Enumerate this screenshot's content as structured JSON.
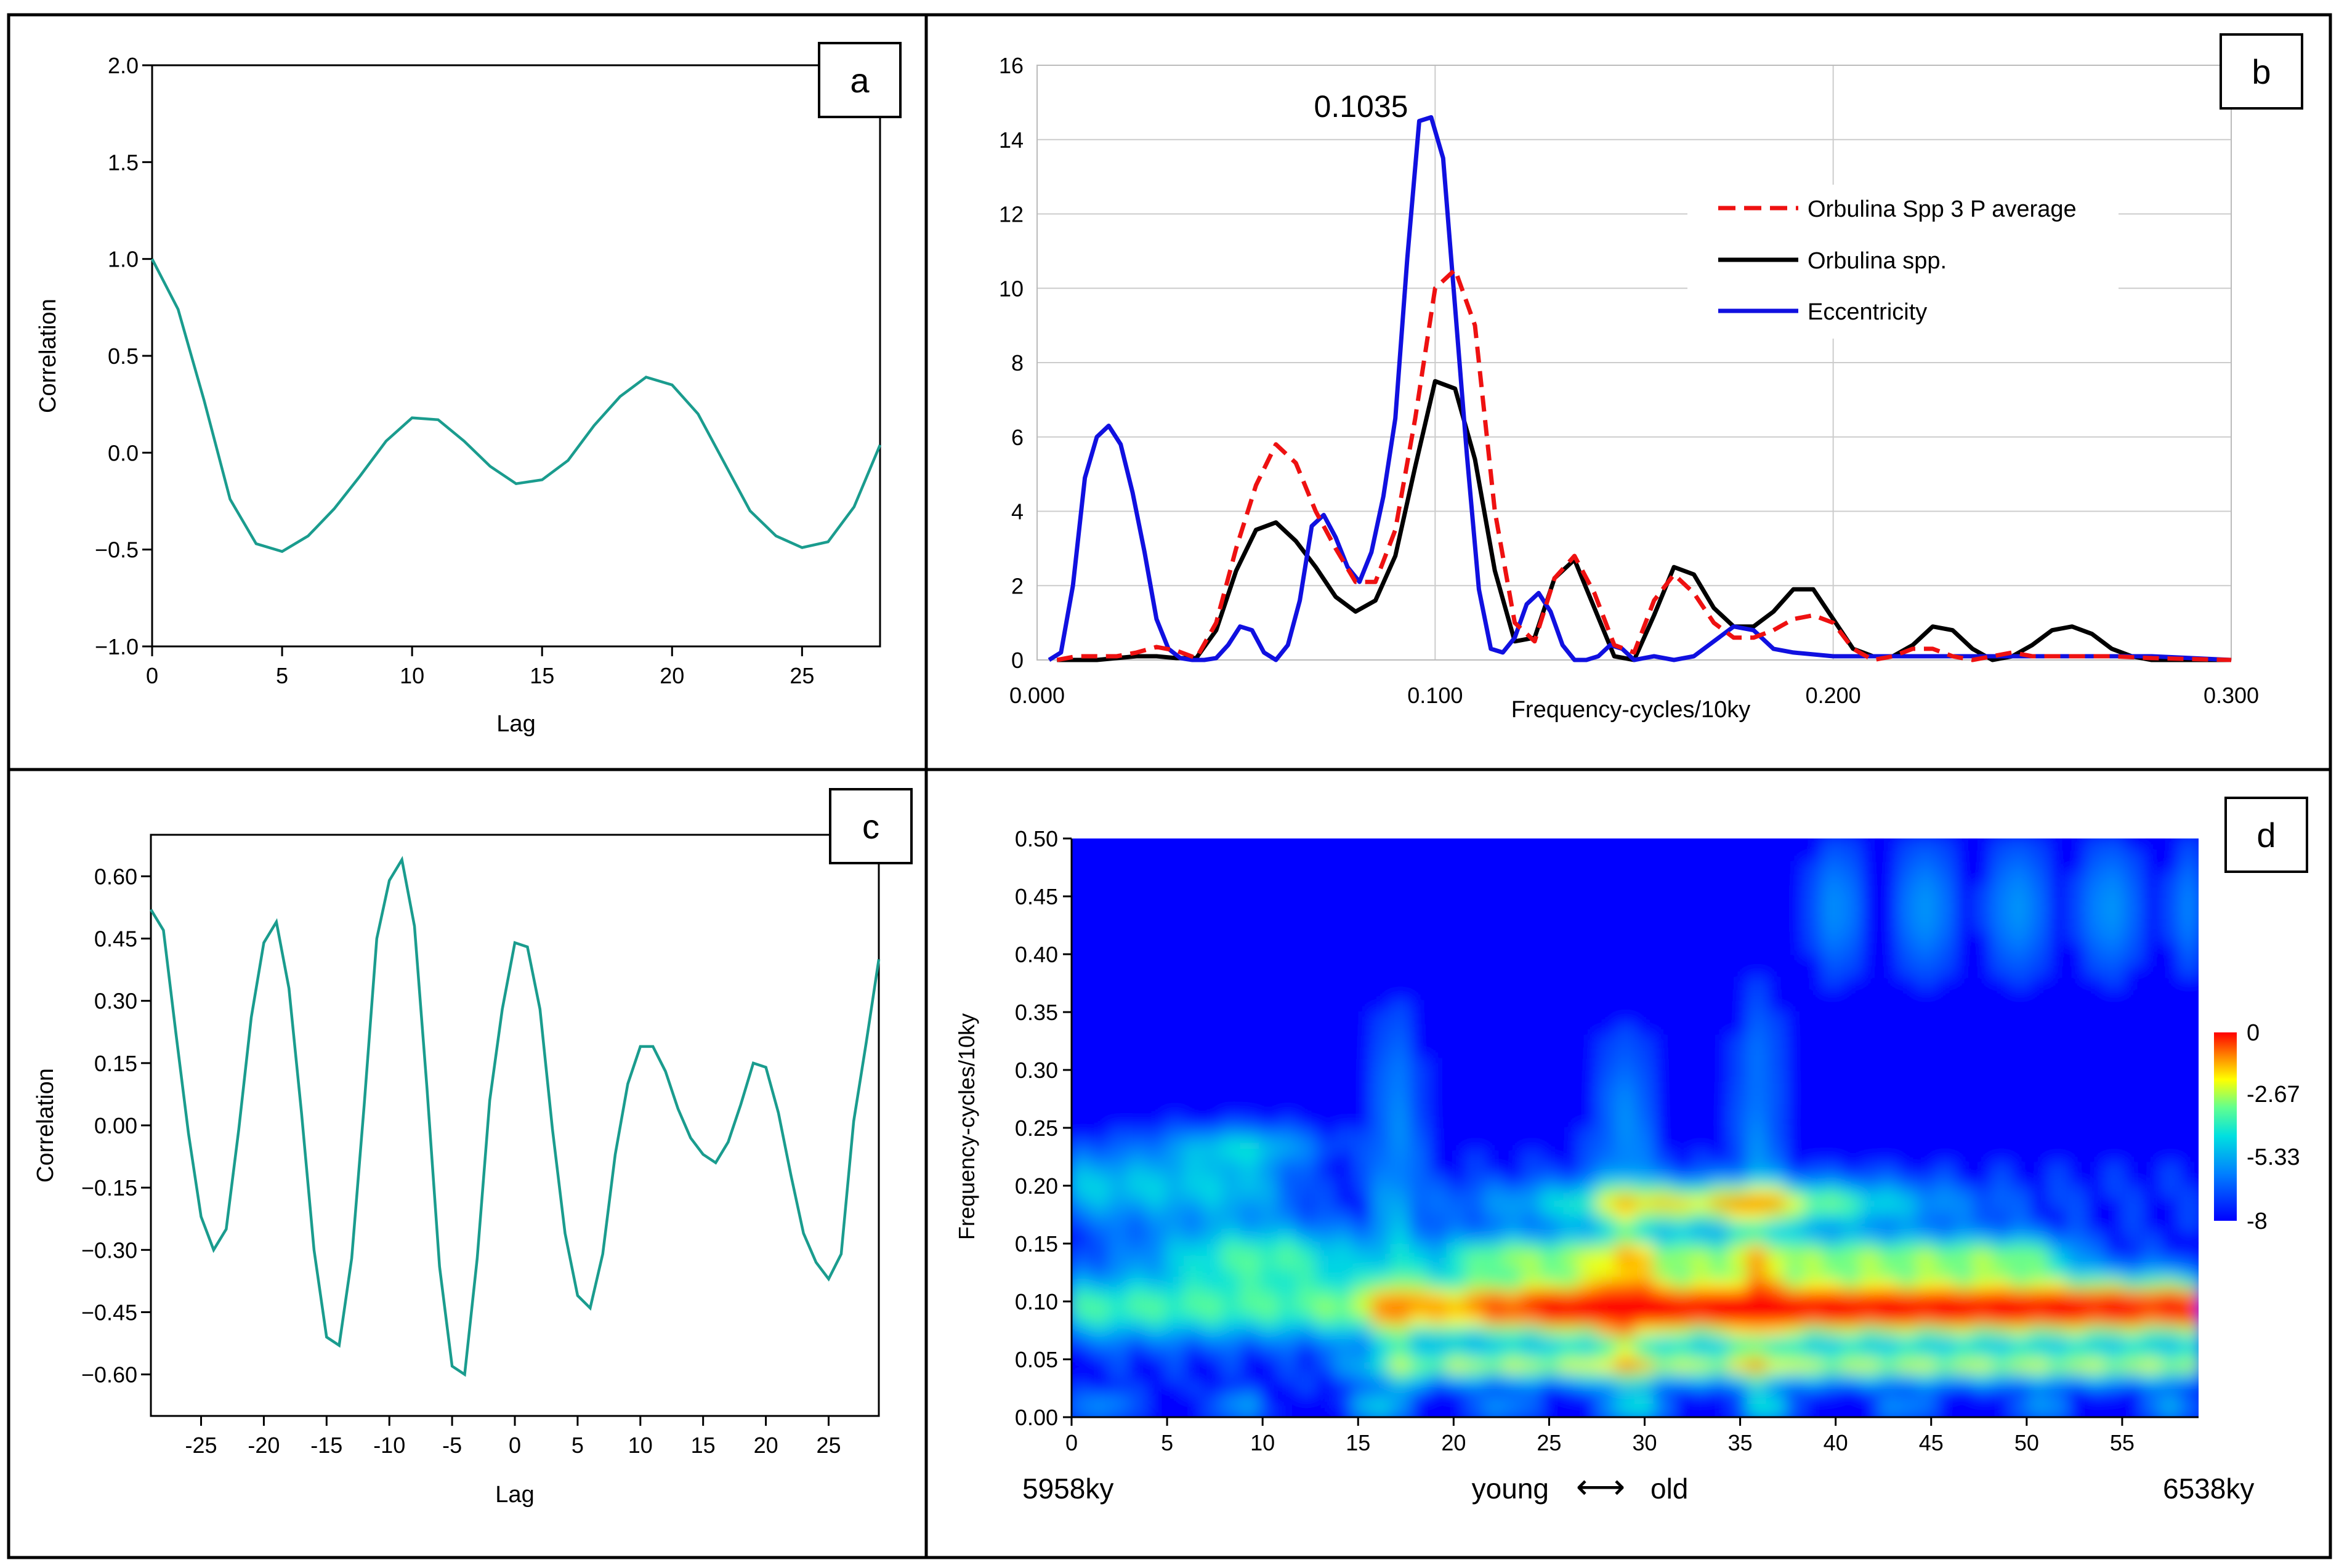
{
  "colors": {
    "teal": "#1a9c8e",
    "black": "#000000",
    "red": "#ee1111",
    "blue": "#1010e0",
    "grid": "#cccccc"
  },
  "chart_data": [
    {
      "id": "a",
      "type": "line",
      "label": "a",
      "xlabel": "Lag",
      "ylabel": "Correlation",
      "xlim": [
        0,
        28
      ],
      "ylim": [
        -1.0,
        2.0
      ],
      "xticks": [
        0,
        5,
        10,
        15,
        20,
        25
      ],
      "yticks": [
        2.0,
        1.5,
        1.0,
        0.5,
        0.0,
        -0.5,
        -1.0
      ],
      "ytick_labels": [
        "2.0",
        "1.5",
        "1.0",
        "0.5",
        "0.0",
        "−0.5",
        "−1.0"
      ],
      "x": [
        0,
        1,
        2,
        3,
        4,
        5,
        6,
        7,
        8,
        9,
        10,
        11,
        12,
        13,
        14,
        15,
        16,
        17,
        18,
        19,
        20,
        21,
        22,
        23,
        24,
        25,
        26,
        27,
        28
      ],
      "values": [
        1.0,
        0.74,
        0.27,
        -0.24,
        -0.47,
        -0.51,
        -0.43,
        -0.29,
        -0.12,
        0.06,
        0.18,
        0.17,
        0.06,
        -0.07,
        -0.16,
        -0.14,
        -0.04,
        0.14,
        0.29,
        0.39,
        0.35,
        0.2,
        -0.05,
        -0.3,
        -0.43,
        -0.49,
        -0.46,
        -0.28,
        0.04
      ]
    },
    {
      "id": "b",
      "type": "line",
      "label": "b",
      "xlabel": "Frequency-cycles/10ky",
      "ylabel": "",
      "xlim": [
        0,
        0.3
      ],
      "ylim": [
        0,
        16
      ],
      "xticks": [
        0,
        0.1,
        0.2,
        0.3
      ],
      "xtick_labels": [
        "0.000",
        "0.100",
        "0.200",
        "0.300"
      ],
      "yticks": [
        0,
        2,
        4,
        6,
        8,
        10,
        12,
        14,
        16
      ],
      "annotation": "0.1035",
      "legend": [
        "Orbulina Spp 3 P average",
        "Orbulina spp.",
        "Eccentricity"
      ],
      "series": [
        {
          "name": "Orbulina Spp 3 P average",
          "style": "dashed",
          "x": [
            0.005,
            0.01,
            0.015,
            0.02,
            0.025,
            0.03,
            0.035,
            0.04,
            0.045,
            0.05,
            0.055,
            0.06,
            0.065,
            0.07,
            0.075,
            0.08,
            0.085,
            0.09,
            0.095,
            0.1,
            0.105,
            0.11,
            0.115,
            0.12,
            0.125,
            0.13,
            0.135,
            0.14,
            0.145,
            0.15,
            0.155,
            0.16,
            0.165,
            0.17,
            0.175,
            0.18,
            0.185,
            0.19,
            0.195,
            0.2,
            0.205,
            0.21,
            0.215,
            0.22,
            0.225,
            0.23,
            0.235,
            0.24,
            0.245,
            0.25,
            0.26,
            0.27,
            0.28,
            0.3
          ],
          "values": [
            0,
            0.1,
            0.1,
            0.1,
            0.2,
            0.35,
            0.25,
            0.05,
            1,
            3,
            4.7,
            5.8,
            5.3,
            4,
            3,
            2.1,
            2.1,
            3.5,
            6.5,
            10,
            10.5,
            9,
            4,
            1,
            0.5,
            2.2,
            2.8,
            1.8,
            0.4,
            0.2,
            1.6,
            2.3,
            1.8,
            1,
            0.6,
            0.6,
            0.8,
            1.1,
            1.2,
            1,
            0.3,
            0,
            0.1,
            0.3,
            0.3,
            0.1,
            0,
            0.1,
            0.2,
            0.1,
            0.1,
            0.1,
            0.05,
            0
          ]
        },
        {
          "name": "Orbulina spp.",
          "style": "solid",
          "x": [
            0.005,
            0.01,
            0.015,
            0.02,
            0.025,
            0.03,
            0.035,
            0.04,
            0.045,
            0.05,
            0.055,
            0.06,
            0.065,
            0.07,
            0.075,
            0.08,
            0.085,
            0.09,
            0.095,
            0.1,
            0.105,
            0.11,
            0.115,
            0.12,
            0.125,
            0.13,
            0.135,
            0.14,
            0.145,
            0.15,
            0.155,
            0.16,
            0.165,
            0.17,
            0.175,
            0.18,
            0.185,
            0.19,
            0.195,
            0.2,
            0.205,
            0.21,
            0.215,
            0.22,
            0.225,
            0.23,
            0.235,
            0.24,
            0.245,
            0.25,
            0.255,
            0.26,
            0.265,
            0.27,
            0.275,
            0.28,
            0.3
          ],
          "values": [
            0,
            0,
            0,
            0.05,
            0.1,
            0.1,
            0.05,
            0.05,
            0.8,
            2.4,
            3.5,
            3.7,
            3.2,
            2.5,
            1.7,
            1.3,
            1.6,
            2.8,
            5.2,
            7.5,
            7.3,
            5.4,
            2.4,
            0.5,
            0.6,
            2.2,
            2.7,
            1.4,
            0.1,
            0,
            1.2,
            2.5,
            2.3,
            1.4,
            0.9,
            0.9,
            1.3,
            1.9,
            1.9,
            1.1,
            0.3,
            0.1,
            0.1,
            0.4,
            0.9,
            0.8,
            0.3,
            0,
            0.1,
            0.4,
            0.8,
            0.9,
            0.7,
            0.3,
            0.1,
            0,
            0
          ]
        },
        {
          "name": "Eccentricity",
          "style": "solid",
          "x": [
            0.003,
            0.006,
            0.009,
            0.012,
            0.015,
            0.018,
            0.021,
            0.024,
            0.027,
            0.03,
            0.033,
            0.036,
            0.039,
            0.042,
            0.045,
            0.048,
            0.051,
            0.054,
            0.057,
            0.06,
            0.063,
            0.066,
            0.069,
            0.072,
            0.075,
            0.078,
            0.081,
            0.084,
            0.087,
            0.09,
            0.093,
            0.096,
            0.099,
            0.102,
            0.105,
            0.108,
            0.111,
            0.114,
            0.117,
            0.12,
            0.123,
            0.126,
            0.129,
            0.132,
            0.135,
            0.138,
            0.141,
            0.144,
            0.147,
            0.15,
            0.155,
            0.16,
            0.165,
            0.17,
            0.175,
            0.18,
            0.185,
            0.19,
            0.2,
            0.21,
            0.22,
            0.24,
            0.26,
            0.28,
            0.3
          ],
          "values": [
            0,
            0.2,
            2,
            4.9,
            6,
            6.3,
            5.8,
            4.5,
            2.9,
            1.1,
            0.3,
            0.05,
            0,
            0,
            0.05,
            0.4,
            0.9,
            0.8,
            0.2,
            0,
            0.4,
            1.6,
            3.6,
            3.9,
            3.3,
            2.5,
            2.1,
            2.9,
            4.4,
            6.5,
            10.8,
            14.5,
            14.6,
            13.5,
            9.5,
            5.5,
            1.9,
            0.3,
            0.2,
            0.6,
            1.5,
            1.8,
            1.3,
            0.4,
            0,
            0,
            0.1,
            0.4,
            0.3,
            0,
            0.1,
            0,
            0.1,
            0.5,
            0.9,
            0.8,
            0.3,
            0.2,
            0.1,
            0.1,
            0.1,
            0.1,
            0.1,
            0.1,
            0
          ]
        }
      ]
    },
    {
      "id": "c",
      "type": "line",
      "label": "c",
      "xlabel": "Lag",
      "ylabel": "Correlation",
      "xlim": [
        -29,
        29
      ],
      "ylim": [
        -0.7,
        0.7
      ],
      "xticks": [
        -25,
        -20,
        -15,
        -10,
        -5,
        0,
        5,
        10,
        15,
        20,
        25
      ],
      "yticks": [
        0.6,
        0.45,
        0.3,
        0.15,
        0.0,
        -0.15,
        -0.3,
        -0.45,
        -0.6
      ],
      "ytick_labels": [
        "0.60",
        "0.45",
        "0.30",
        "0.15",
        "0.00",
        "−0.15",
        "−0.30",
        "−0.45",
        "−0.60"
      ],
      "x": [
        -29,
        -28,
        -27,
        -26,
        -25,
        -24,
        -23,
        -22,
        -21,
        -20,
        -19,
        -18,
        -17,
        -16,
        -15,
        -14,
        -13,
        -12,
        -11,
        -10,
        -9,
        -8,
        -7,
        -6,
        -5,
        -4,
        -3,
        -2,
        -1,
        0,
        1,
        2,
        3,
        4,
        5,
        6,
        7,
        8,
        9,
        10,
        11,
        12,
        13,
        14,
        15,
        16,
        17,
        18,
        19,
        20,
        21,
        22,
        23,
        24,
        25,
        26,
        27,
        28,
        29
      ],
      "values": [
        0.52,
        0.47,
        0.22,
        -0.02,
        -0.22,
        -0.3,
        -0.25,
        -0.01,
        0.26,
        0.44,
        0.49,
        0.33,
        0.03,
        -0.3,
        -0.51,
        -0.53,
        -0.32,
        0.05,
        0.45,
        0.59,
        0.64,
        0.48,
        0.09,
        -0.34,
        -0.58,
        -0.6,
        -0.32,
        0.06,
        0.28,
        0.44,
        0.43,
        0.28,
        -0.01,
        -0.26,
        -0.41,
        -0.44,
        -0.31,
        -0.07,
        0.1,
        0.19,
        0.19,
        0.13,
        0.04,
        -0.03,
        -0.07,
        -0.09,
        -0.04,
        0.05,
        0.15,
        0.14,
        0.03,
        -0.12,
        -0.26,
        -0.33,
        -0.37,
        -0.31,
        0.01,
        0.2,
        0.4
      ]
    },
    {
      "id": "d",
      "type": "heatmap",
      "label": "d",
      "xlabel": "young ⟷ old",
      "ylabel": "Frequency-cycles/10ky",
      "xlim": [
        0,
        59
      ],
      "ylim": [
        0,
        0.5
      ],
      "xticks": [
        0,
        5,
        10,
        15,
        20,
        25,
        30,
        35,
        40,
        45,
        50,
        55
      ],
      "yticks": [
        0,
        0.05,
        0.1,
        0.15,
        0.2,
        0.25,
        0.3,
        0.35,
        0.4,
        0.45,
        0.5
      ],
      "ytick_labels": [
        "0.00",
        "0.05",
        "0.10",
        "0.15",
        "0.20",
        "0.25",
        "0.30",
        "0.35",
        "0.40",
        "0.45",
        "0.50"
      ],
      "start_label": "5958ky",
      "end_label": "6538ky",
      "young": "young",
      "old": "old",
      "arrow": "⟷",
      "colorbar_ticks": [
        "0",
        "-2.67",
        "-5.33",
        "-8"
      ],
      "colorbar_range": [
        -8,
        0
      ]
    }
  ]
}
